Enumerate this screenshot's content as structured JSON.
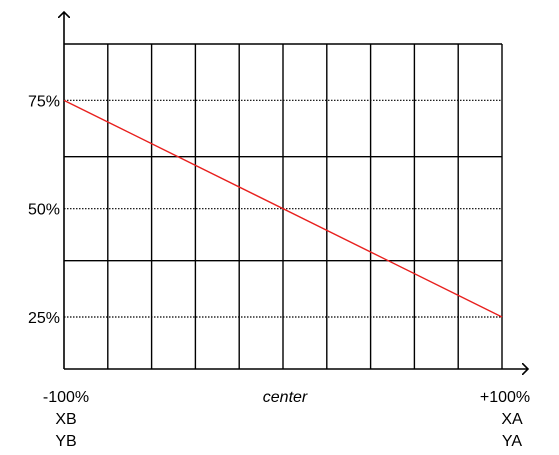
{
  "chart_data": {
    "type": "line",
    "x_left_label": "-100%",
    "x_center_label": "center",
    "x_right_label": "+100%",
    "left_sub_labels": [
      "XB",
      "YB"
    ],
    "right_sub_labels": [
      "XA",
      "YA"
    ],
    "y_ticks": [
      {
        "value": 75,
        "label": "75%"
      },
      {
        "value": 50,
        "label": "50%"
      },
      {
        "value": 25,
        "label": "25%"
      }
    ],
    "xlim": [
      -100,
      100
    ],
    "ylim": [
      13,
      88
    ],
    "x_grid_step": 20,
    "y_grid_values": [
      13,
      38,
      62,
      88
    ],
    "dotted_reference_values": [
      75,
      50,
      25
    ],
    "series": [
      {
        "x": [
          -100,
          100
        ],
        "y": [
          75,
          25
        ],
        "color": "#e8201e"
      }
    ],
    "grid": true
  }
}
